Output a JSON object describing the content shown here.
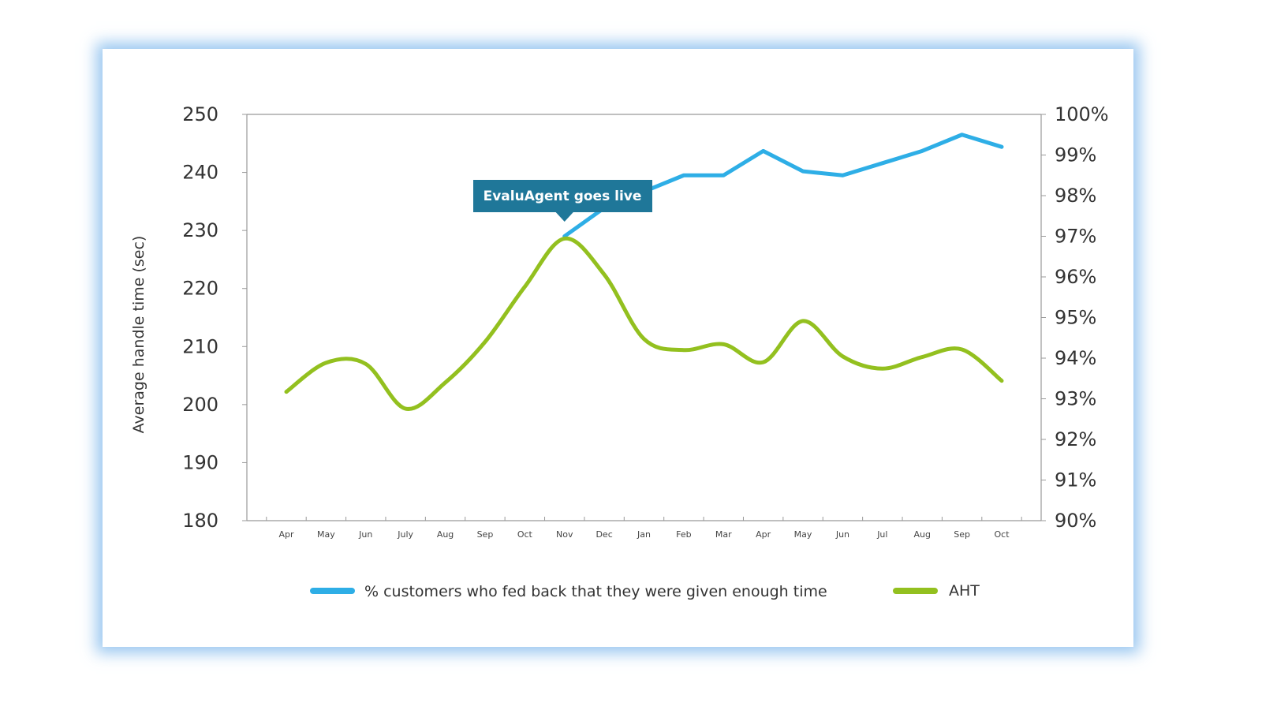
{
  "chart_data": {
    "type": "line",
    "categories": [
      "Apr",
      "May",
      "Jun",
      "July",
      "Aug",
      "Sep",
      "Oct",
      "Nov",
      "Dec",
      "Jan",
      "Feb",
      "Mar",
      "Apr",
      "May",
      "Jun",
      "Jul",
      "Aug",
      "Sep",
      "Oct"
    ],
    "ylabel": "Average handle time (sec)",
    "ylim": [
      180,
      250
    ],
    "yticks": [
      "250",
      "240",
      "230",
      "220",
      "210",
      "200",
      "190",
      "180"
    ],
    "y2lim": [
      90,
      100
    ],
    "y2ticks": [
      "100%",
      "99%",
      "98%",
      "97%",
      "96%",
      "95%",
      "94%",
      "93%",
      "92%",
      "91%",
      "90%"
    ],
    "grid": false,
    "legend_position": "bottom",
    "series": [
      {
        "name": "% customers who fed back that they were given enough time",
        "axis": "right",
        "color": "#2eaee6",
        "values": [
          null,
          null,
          null,
          null,
          null,
          null,
          null,
          97.0,
          97.7,
          98.1,
          98.5,
          98.5,
          99.1,
          98.6,
          98.5,
          98.8,
          99.1,
          99.5,
          99.2
        ]
      },
      {
        "name": "AHT",
        "axis": "left",
        "color": "#93c01f",
        "smooth": true,
        "values": [
          202.2,
          207.2,
          207.0,
          199.3,
          203.8,
          210.8,
          220.3,
          228.6,
          222.4,
          211.3,
          209.4,
          210.4,
          207.3,
          214.4,
          208.3,
          206.2,
          208.2,
          209.5,
          204.1
        ]
      }
    ],
    "annotations": [
      {
        "text": "EvaluAgent goes live",
        "category_index": 7,
        "color": "#1f7799"
      }
    ]
  }
}
